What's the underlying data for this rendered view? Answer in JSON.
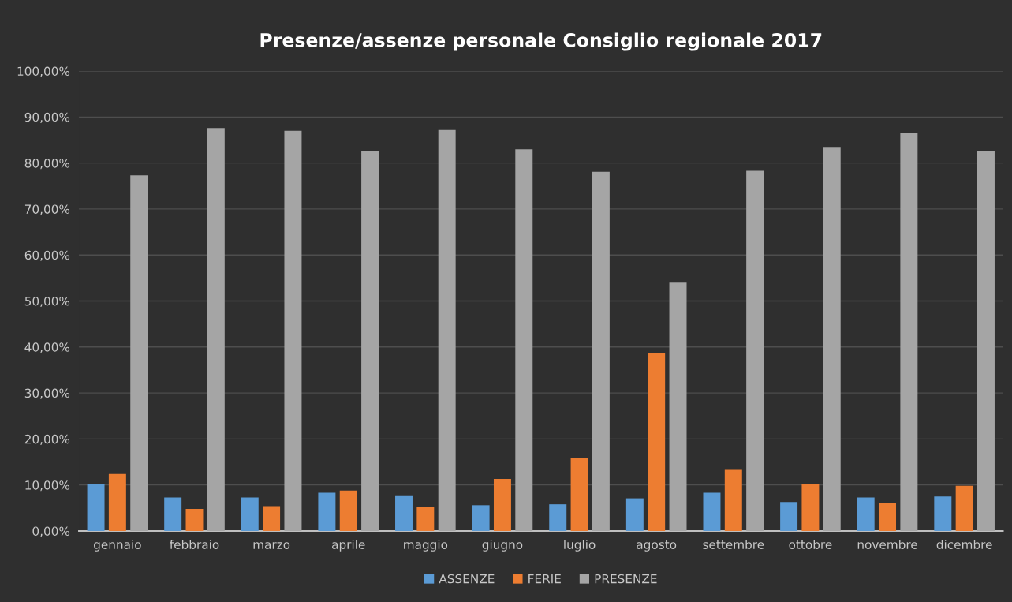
{
  "chart_data": {
    "type": "bar",
    "title": "Presenze/assenze personale Consiglio regionale 2017",
    "categories": [
      "gennaio",
      "febbraio",
      "marzo",
      "aprile",
      "maggio",
      "giugno",
      "luglio",
      "agosto",
      "settembre",
      "ottobre",
      "novembre",
      "dicembre"
    ],
    "series": [
      {
        "name": "ASSENZE",
        "color": "#5b9bd5",
        "values": [
          10.1,
          7.3,
          7.3,
          8.3,
          7.6,
          5.6,
          5.8,
          7.1,
          8.3,
          6.3,
          7.3,
          7.5
        ]
      },
      {
        "name": "FERIE",
        "color": "#ed7d31",
        "values": [
          12.4,
          4.8,
          5.4,
          8.8,
          5.2,
          11.3,
          15.9,
          38.7,
          13.3,
          10.1,
          6.1,
          9.8
        ]
      },
      {
        "name": "PRESENZE",
        "color": "#a5a5a5",
        "values": [
          77.3,
          87.6,
          87.0,
          82.6,
          87.2,
          83.0,
          78.1,
          54.0,
          78.3,
          83.5,
          86.5,
          82.5
        ]
      }
    ],
    "ylim": [
      0,
      100
    ],
    "yticks": [
      {
        "value": 0,
        "label": "0,00%"
      },
      {
        "value": 10,
        "label": "10,00%"
      },
      {
        "value": 20,
        "label": "20,00%"
      },
      {
        "value": 30,
        "label": "30,00%"
      },
      {
        "value": 40,
        "label": "40,00%"
      },
      {
        "value": 50,
        "label": "50,00%"
      },
      {
        "value": 60,
        "label": "60,00%"
      },
      {
        "value": 70,
        "label": "70,00%"
      },
      {
        "value": 80,
        "label": "80,00%"
      },
      {
        "value": 90,
        "label": "90,00%"
      },
      {
        "value": 100,
        "label": "100,00%"
      }
    ],
    "grid": "y",
    "legend": "bottom"
  }
}
